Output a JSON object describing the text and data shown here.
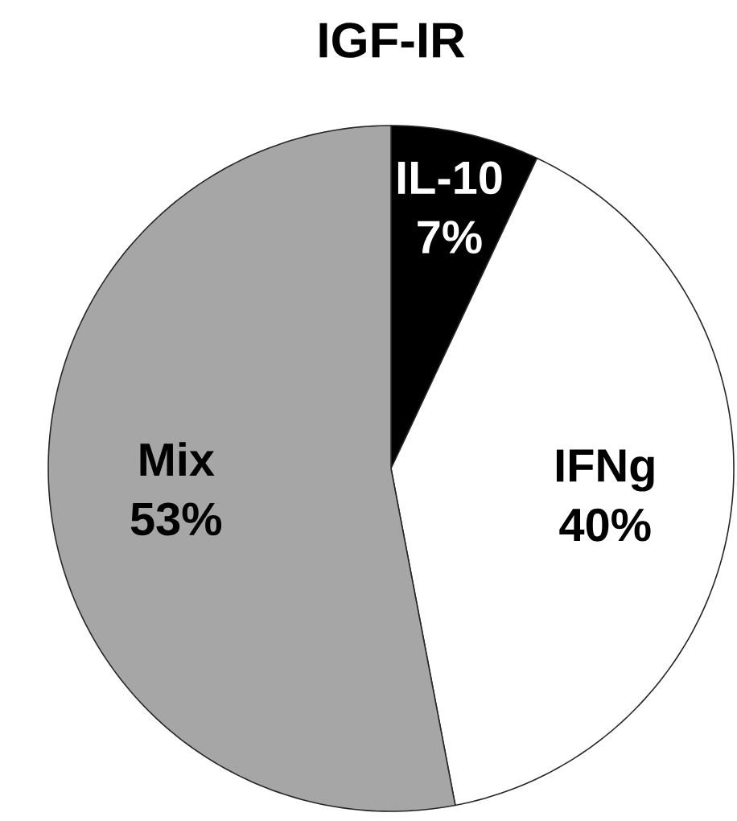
{
  "chart_data": {
    "type": "pie",
    "title": "IGF-IR",
    "categories": [
      "IL-10",
      "IFNg",
      "Mix"
    ],
    "values": [
      7,
      40,
      53
    ],
    "colors": [
      "#000000",
      "#ffffff",
      "#a6a6a6"
    ],
    "value_labels": [
      "7%",
      "40%",
      "53%"
    ]
  }
}
